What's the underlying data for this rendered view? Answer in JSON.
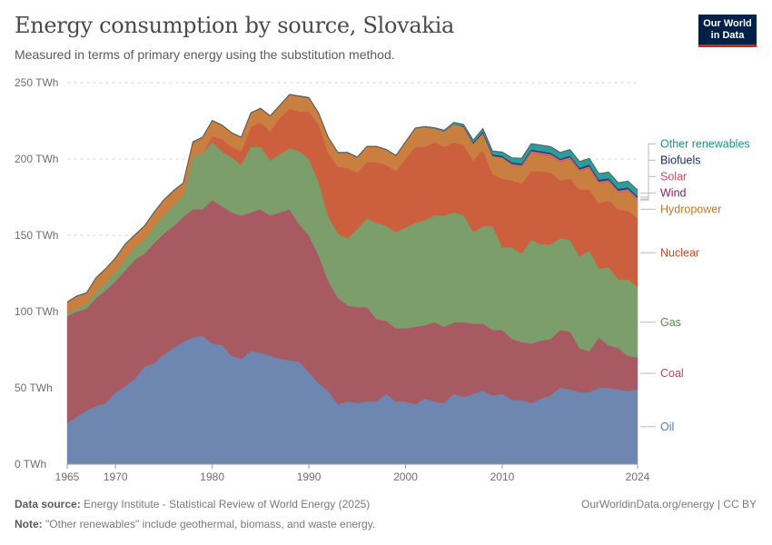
{
  "header": {
    "title": "Energy consumption by source, Slovakia",
    "subtitle": "Measured in terms of primary energy using the substitution method."
  },
  "logo": {
    "line1": "Our World",
    "line2": "in Data"
  },
  "footer": {
    "source_label": "Data source:",
    "source_text": "Energy Institute - Statistical Review of World Energy (2025)",
    "credit": "OurWorldinData.org/energy | CC BY",
    "note_label": "Note:",
    "note_text": "\"Other renewables\" include geothermal, biomass, and waste energy."
  },
  "chart_data": {
    "type": "area",
    "stacked": true,
    "title": "Energy consumption by source, Slovakia",
    "unit": "TWh",
    "ylim": [
      0,
      250
    ],
    "yticks": [
      0,
      50,
      100,
      150,
      200,
      250
    ],
    "ytick_labels": [
      "0 TWh",
      "50 TWh",
      "100 TWh",
      "150 TWh",
      "200 TWh",
      "250 TWh"
    ],
    "xlim": [
      1965,
      2024
    ],
    "xticks": [
      1965,
      1970,
      1980,
      1990,
      2000,
      2010,
      2024
    ],
    "grid": true,
    "years": [
      1965,
      1966,
      1967,
      1968,
      1969,
      1970,
      1971,
      1972,
      1973,
      1974,
      1975,
      1976,
      1977,
      1978,
      1979,
      1980,
      1981,
      1982,
      1983,
      1984,
      1985,
      1986,
      1987,
      1988,
      1989,
      1990,
      1991,
      1992,
      1993,
      1994,
      1995,
      1996,
      1997,
      1998,
      1999,
      2000,
      2001,
      2002,
      2003,
      2004,
      2005,
      2006,
      2007,
      2008,
      2009,
      2010,
      2011,
      2012,
      2013,
      2014,
      2015,
      2016,
      2017,
      2018,
      2019,
      2020,
      2021,
      2022,
      2023,
      2024
    ],
    "series": [
      {
        "name": "Oil",
        "color": "#6d87b0",
        "label_color": "#5a7bae",
        "values": [
          27,
          31,
          35,
          38,
          40,
          47,
          51,
          56,
          64,
          66,
          72,
          76,
          80,
          83,
          84,
          79,
          78,
          71,
          69,
          74,
          73,
          71,
          69,
          68,
          67,
          60,
          53,
          48,
          39,
          41,
          40,
          41,
          41,
          46,
          41,
          41,
          39,
          43,
          41,
          40,
          46,
          44,
          46,
          48,
          45,
          46,
          42,
          42,
          40,
          43,
          45,
          50,
          49,
          47,
          47,
          50,
          50,
          49,
          48,
          49
        ]
      },
      {
        "name": "Coal",
        "color": "#a75a62",
        "label_color": "#a84f5a",
        "values": [
          70,
          69,
          67,
          71,
          74,
          73,
          76,
          78,
          74,
          79,
          79,
          80,
          82,
          84,
          83,
          94,
          91,
          94,
          94,
          91,
          94,
          92,
          96,
          99,
          90,
          90,
          84,
          72,
          70,
          63,
          63,
          62,
          54,
          48,
          48,
          48,
          51,
          48,
          52,
          50,
          47,
          49,
          46,
          44,
          43,
          42,
          40,
          38,
          39,
          38,
          37,
          38,
          38,
          29,
          27,
          33,
          28,
          27,
          23,
          21
        ]
      },
      {
        "name": "Gas",
        "color": "#7b9e6b",
        "label_color": "#5a8a4a",
        "values": [
          2,
          2,
          3,
          4,
          5,
          6,
          7,
          8,
          9,
          11,
          12,
          14,
          14,
          34,
          37,
          38,
          36,
          36,
          33,
          43,
          41,
          36,
          38,
          40,
          48,
          50,
          48,
          42,
          42,
          44,
          51,
          58,
          63,
          62,
          63,
          66,
          68,
          69,
          70,
          73,
          72,
          70,
          60,
          64,
          68,
          54,
          60,
          58,
          68,
          63,
          62,
          60,
          60,
          60,
          66,
          45,
          51,
          45,
          50,
          46
        ]
      },
      {
        "name": "Nuclear",
        "color": "#cc5f3d",
        "label_color": "#b84e27",
        "values": [
          0,
          0,
          0,
          0,
          0,
          0,
          0,
          0,
          0,
          0,
          0,
          0,
          0,
          0,
          0,
          4,
          8,
          7,
          9,
          13,
          16,
          19,
          24,
          26,
          26,
          31,
          38,
          42,
          44,
          46,
          37,
          37,
          40,
          40,
          40,
          45,
          50,
          48,
          48,
          45,
          46,
          46,
          47,
          50,
          34,
          45,
          44,
          46,
          45,
          48,
          47,
          38,
          40,
          44,
          40,
          43,
          44,
          46,
          45,
          45
        ]
      },
      {
        "name": "Hydropower",
        "color": "#c97f3f",
        "label_color": "#bd7a2b",
        "values": [
          7,
          8,
          7,
          9,
          9,
          9,
          10,
          8,
          9,
          9,
          10,
          9,
          8,
          10,
          10,
          10,
          9,
          9,
          9,
          9,
          9,
          10,
          8,
          9,
          10,
          9,
          7,
          10,
          9,
          10,
          10,
          10,
          10,
          10,
          10,
          11,
          12,
          13,
          9,
          10,
          12,
          12,
          11,
          11,
          12,
          14,
          10,
          11,
          12,
          11,
          11,
          12,
          13,
          12,
          14,
          13,
          12,
          11,
          13,
          12
        ]
      },
      {
        "name": "Wind",
        "color": "#7d2356",
        "label_color": "#8c1f64",
        "values": [
          0,
          0,
          0,
          0,
          0,
          0,
          0,
          0,
          0,
          0,
          0,
          0,
          0,
          0,
          0,
          0,
          0,
          0,
          0,
          0,
          0,
          0,
          0,
          0,
          0,
          0,
          0,
          0,
          0,
          0,
          0,
          0,
          0,
          0,
          0,
          0,
          0,
          0,
          0,
          0,
          0,
          0,
          0,
          0,
          0,
          0,
          0,
          0,
          0,
          0,
          0,
          0,
          0,
          0,
          0,
          0,
          0,
          0,
          0,
          0.1
        ]
      },
      {
        "name": "Solar",
        "color": "#d6687e",
        "label_color": "#d14a64",
        "values": [
          0,
          0,
          0,
          0,
          0,
          0,
          0,
          0,
          0,
          0,
          0,
          0,
          0,
          0,
          0,
          0,
          0,
          0,
          0,
          0,
          0,
          0,
          0,
          0,
          0,
          0,
          0,
          0,
          0,
          0,
          0,
          0,
          0,
          0,
          0,
          0,
          0,
          0,
          0,
          0,
          0,
          0,
          0,
          0,
          0,
          0,
          0.8,
          1.0,
          1.2,
          1.1,
          1.1,
          1.2,
          1.2,
          1.1,
          1.2,
          1.2,
          1.2,
          1.2,
          1.3,
          1.3
        ]
      },
      {
        "name": "Biofuels",
        "color": "#2a3f6e",
        "label_color": "#1a2b5e",
        "values": [
          0,
          0,
          0,
          0,
          0,
          0,
          0,
          0,
          0,
          0,
          0,
          0,
          0,
          0,
          0,
          0,
          0,
          0,
          0,
          0,
          0,
          0,
          0,
          0,
          0,
          0,
          0,
          0,
          0,
          0,
          0,
          0,
          0,
          0,
          0,
          0,
          0,
          0,
          0,
          0,
          0,
          0.5,
          0.8,
          1,
          1,
          1,
          1,
          1,
          1,
          1,
          1,
          1,
          1,
          1.2,
          1.2,
          1.2,
          1.2,
          1.2,
          1.2,
          1.2
        ]
      },
      {
        "name": "Other renewables",
        "color": "#2a9f9a",
        "label_color": "#1f8f8a",
        "values": [
          0.3,
          0.3,
          0.3,
          0.3,
          0.3,
          0.3,
          0.3,
          0.3,
          0.3,
          0.3,
          0.3,
          0.3,
          0.3,
          0.3,
          0.3,
          0.3,
          0.3,
          0.3,
          0.3,
          0.3,
          0.3,
          0.3,
          0.3,
          0.3,
          0.3,
          0.3,
          0.3,
          0.3,
          0.3,
          0.3,
          0.3,
          0.3,
          0.3,
          0.3,
          0.3,
          0.3,
          0.3,
          0.3,
          0.5,
          0.8,
          1,
          1.2,
          1.5,
          2,
          2.2,
          2.5,
          3,
          3.5,
          3.8,
          4,
          4,
          4,
          4,
          4,
          4,
          4,
          4,
          4,
          4,
          4
        ]
      }
    ]
  }
}
